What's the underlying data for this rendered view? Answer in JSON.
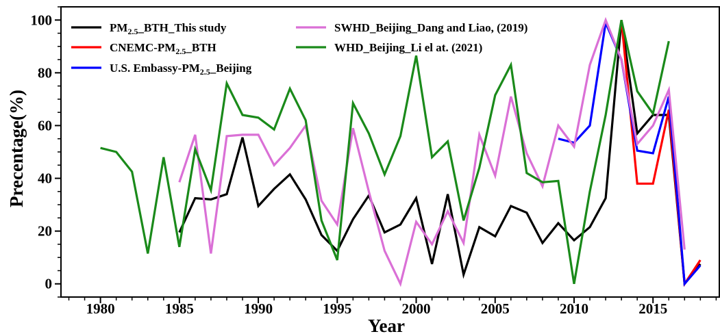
{
  "chart_data": {
    "type": "line",
    "xlabel": "Year",
    "ylabel": "Precentage(%)",
    "xlim": [
      1977.5,
      2019.2
    ],
    "ylim": [
      -5,
      105
    ],
    "xticks": [
      1980,
      1985,
      1990,
      1995,
      2000,
      2005,
      2010,
      2015
    ],
    "yticks": [
      0,
      20,
      40,
      60,
      80,
      100
    ],
    "grid": false,
    "legend_position": "top-left",
    "series": [
      {
        "name": "PM2.5_BTH_This study",
        "label_parts": [
          "PM",
          "2.5",
          "_BTH_This study"
        ],
        "color": "#000000",
        "points": [
          [
            1985,
            19.5
          ],
          [
            1986,
            32.5
          ],
          [
            1987,
            32
          ],
          [
            1988,
            34
          ],
          [
            1989,
            55.5
          ],
          [
            1990,
            29.5
          ],
          [
            1991,
            36
          ],
          [
            1992,
            41.5
          ],
          [
            1993,
            32
          ],
          [
            1994,
            18.5
          ],
          [
            1995,
            12.5
          ],
          [
            1996,
            24.5
          ],
          [
            1997,
            33.5
          ],
          [
            1998,
            19.5
          ],
          [
            1999,
            22.5
          ],
          [
            2000,
            32.5
          ],
          [
            2001,
            7.5
          ],
          [
            2002,
            34
          ],
          [
            2003,
            3.5
          ],
          [
            2004,
            21.5
          ],
          [
            2005,
            18
          ],
          [
            2006,
            29.5
          ],
          [
            2007,
            27
          ],
          [
            2008,
            15.5
          ],
          [
            2009,
            23
          ],
          [
            2010,
            16.5
          ],
          [
            2011,
            21.5
          ],
          [
            2012,
            32.5
          ],
          [
            2013,
            100
          ],
          [
            2014,
            57
          ],
          [
            2015,
            64
          ],
          [
            2016,
            64
          ],
          [
            2017,
            0
          ],
          [
            2018,
            7.5
          ]
        ]
      },
      {
        "name": "CNEMC-PM2.5_BTH",
        "label_parts": [
          "CNEMC-PM",
          "2.5",
          "_BTH"
        ],
        "color": "#ff0000",
        "points": [
          [
            2013,
            100
          ],
          [
            2014,
            38
          ],
          [
            2015,
            38
          ],
          [
            2016,
            66
          ],
          [
            2017,
            0
          ],
          [
            2018,
            9
          ]
        ]
      },
      {
        "name": "U.S. Embassy-PM2.5_Beijing",
        "label_parts": [
          "U.S. Embassy-PM",
          "2.5",
          "_Beijing"
        ],
        "color": "#0000ff",
        "points": [
          [
            2009,
            55
          ],
          [
            2010,
            53.5
          ],
          [
            2011,
            60
          ],
          [
            2012,
            99
          ],
          [
            2013,
            85
          ],
          [
            2014,
            50.5
          ],
          [
            2015,
            49.5
          ],
          [
            2016,
            71
          ],
          [
            2017,
            0
          ],
          [
            2018,
            7
          ]
        ]
      },
      {
        "name": "SWHD_Beijing_Dang and Liao, (2019)",
        "label_parts": [
          "SWHD_Beijing_Dang and Liao, (2019)",
          "",
          ""
        ],
        "color": "#da70d6",
        "points": [
          [
            1985,
            38.5
          ],
          [
            1986,
            56.5
          ],
          [
            1987,
            11.5
          ],
          [
            1988,
            56
          ],
          [
            1989,
            56.5
          ],
          [
            1990,
            56.5
          ],
          [
            1991,
            45
          ],
          [
            1992,
            51.5
          ],
          [
            1993,
            60
          ],
          [
            1994,
            31.5
          ],
          [
            1995,
            22.5
          ],
          [
            1996,
            59
          ],
          [
            1997,
            35
          ],
          [
            1998,
            12.5
          ],
          [
            1999,
            0
          ],
          [
            2000,
            23.5
          ],
          [
            2001,
            15
          ],
          [
            2002,
            27.5
          ],
          [
            2003,
            15.5
          ],
          [
            2004,
            56.5
          ],
          [
            2005,
            41
          ],
          [
            2006,
            71
          ],
          [
            2007,
            49.5
          ],
          [
            2008,
            37
          ],
          [
            2009,
            60
          ],
          [
            2010,
            52
          ],
          [
            2011,
            83
          ],
          [
            2012,
            100
          ],
          [
            2013,
            85
          ],
          [
            2014,
            53
          ],
          [
            2015,
            60
          ],
          [
            2016,
            73.5
          ],
          [
            2017,
            13
          ]
        ]
      },
      {
        "name": "WHD_Beijing_Li el at. (2021)",
        "label_parts": [
          "WHD_Beijing_Li el at. (2021)",
          "",
          ""
        ],
        "color": "#1a8a1a",
        "points": [
          [
            1980,
            51.5
          ],
          [
            1981,
            50
          ],
          [
            1982,
            42.5
          ],
          [
            1983,
            11.5
          ],
          [
            1984,
            48
          ],
          [
            1985,
            14
          ],
          [
            1986,
            51
          ],
          [
            1987,
            35.5
          ],
          [
            1988,
            76
          ],
          [
            1989,
            64
          ],
          [
            1990,
            63
          ],
          [
            1991,
            58.5
          ],
          [
            1992,
            74
          ],
          [
            1993,
            62
          ],
          [
            1994,
            24
          ],
          [
            1995,
            9
          ],
          [
            1996,
            68.5
          ],
          [
            1997,
            57
          ],
          [
            1998,
            41.5
          ],
          [
            1999,
            56
          ],
          [
            2000,
            86.5
          ],
          [
            2001,
            48
          ],
          [
            2002,
            54
          ],
          [
            2003,
            24
          ],
          [
            2004,
            44
          ],
          [
            2005,
            71.5
          ],
          [
            2006,
            83
          ],
          [
            2007,
            42
          ],
          [
            2008,
            38.5
          ],
          [
            2009,
            39
          ],
          [
            2010,
            0
          ],
          [
            2011,
            35
          ],
          [
            2012,
            64
          ],
          [
            2013,
            100
          ],
          [
            2014,
            73
          ],
          [
            2015,
            64.5
          ],
          [
            2016,
            92
          ]
        ]
      }
    ]
  }
}
